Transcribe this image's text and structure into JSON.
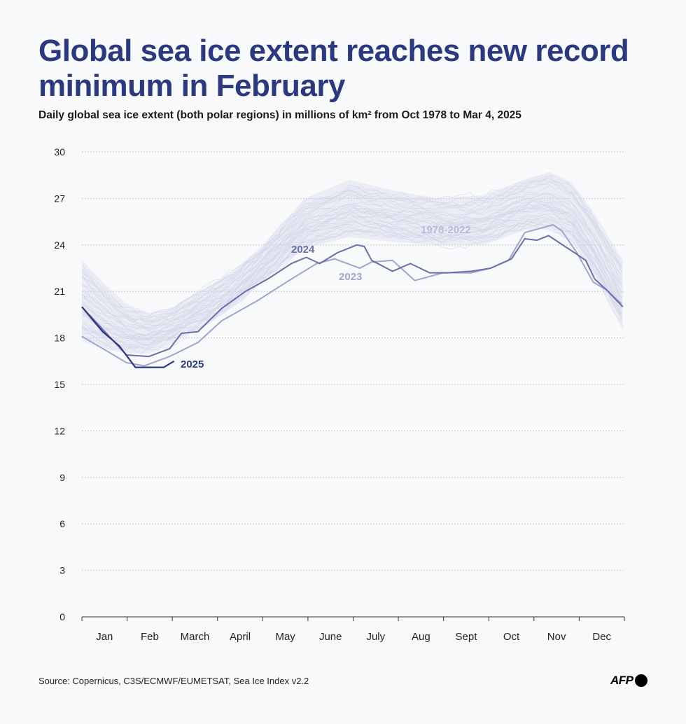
{
  "title": "Global sea ice extent reaches new record minimum in February",
  "subtitle": "Daily global sea ice extent (both polar regions) in millions of km² from Oct 1978 to Mar 4, 2025",
  "source": "Source: Copernicus, C3S/ECMWF/EUMETSAT, Sea Ice Index v2.2",
  "logo": "AFP",
  "chart_data": {
    "type": "line",
    "title": "Global sea ice extent reaches new record minimum in February",
    "xlabel": "",
    "ylabel": "",
    "x_unit": "day of year",
    "xlim": [
      0,
      365
    ],
    "ylim": [
      0,
      30
    ],
    "y_ticks": [
      "0",
      "3",
      "6",
      "9",
      "12",
      "15",
      "18",
      "21",
      "24",
      "27",
      "30"
    ],
    "x_tick_labels": [
      "Jan",
      "Feb",
      "March",
      "April",
      "May",
      "June",
      "July",
      "Aug",
      "Sept",
      "Oct",
      "Nov",
      "Dec"
    ],
    "grid": true,
    "legend": "inline labels",
    "colors": {
      "y2025": "#2b3a80",
      "y2024": "#6a6fa8",
      "y2023": "#a2a4cc",
      "historical": "#d3d5e8",
      "title": "#2b3a80"
    },
    "historical_band": {
      "name": "1978-2022",
      "x": [
        0,
        15,
        30,
        45,
        60,
        75,
        90,
        105,
        120,
        150,
        180,
        210,
        240,
        270,
        300,
        315,
        330,
        345,
        364
      ],
      "min": [
        17.8,
        17.3,
        17.0,
        17.0,
        17.6,
        18.4,
        19.2,
        20.2,
        21.5,
        23.8,
        24.5,
        24.2,
        24.0,
        24.0,
        25.0,
        25.0,
        24.2,
        22.0,
        18.5
      ],
      "max": [
        23.0,
        21.5,
        20.2,
        19.6,
        19.9,
        20.8,
        21.6,
        22.6,
        23.8,
        27.0,
        28.2,
        27.5,
        27.0,
        27.2,
        28.3,
        28.7,
        28.0,
        26.0,
        23.0
      ]
    },
    "series": [
      {
        "name": "2024",
        "x": [
          0,
          30,
          45,
          59,
          67,
          78,
          94,
          110,
          125,
          141,
          151,
          160,
          172,
          185,
          190,
          195,
          209,
          221,
          234,
          246,
          262,
          275,
          289,
          298,
          306,
          314,
          325,
          333,
          339,
          345,
          353,
          359,
          364
        ],
        "y": [
          20.0,
          16.9,
          16.8,
          17.3,
          18.3,
          18.4,
          19.9,
          21.0,
          21.8,
          22.8,
          23.2,
          22.8,
          23.5,
          24.0,
          23.9,
          23.0,
          22.3,
          22.8,
          22.2,
          22.2,
          22.3,
          22.5,
          23.1,
          24.4,
          24.3,
          24.6,
          23.9,
          23.4,
          23.0,
          21.8,
          21.1,
          20.5,
          20.0
        ]
      },
      {
        "name": "2023",
        "x": [
          0,
          16,
          30,
          42,
          59,
          78,
          94,
          118,
          141,
          158,
          170,
          187,
          195,
          209,
          224,
          243,
          262,
          275,
          287,
          298,
          317,
          323,
          333,
          344,
          353,
          363
        ],
        "y": [
          18.1,
          17.2,
          16.4,
          16.2,
          16.8,
          17.7,
          19.1,
          20.4,
          21.8,
          22.8,
          23.1,
          22.5,
          22.9,
          23.0,
          21.7,
          22.2,
          22.2,
          22.5,
          23.0,
          24.8,
          25.3,
          24.9,
          23.5,
          21.6,
          21.1,
          20.2
        ]
      },
      {
        "name": "2025",
        "x": [
          0,
          14,
          25,
          36,
          55,
          62
        ],
        "y": [
          20.0,
          18.4,
          17.5,
          16.1,
          16.1,
          16.5
        ]
      }
    ]
  }
}
